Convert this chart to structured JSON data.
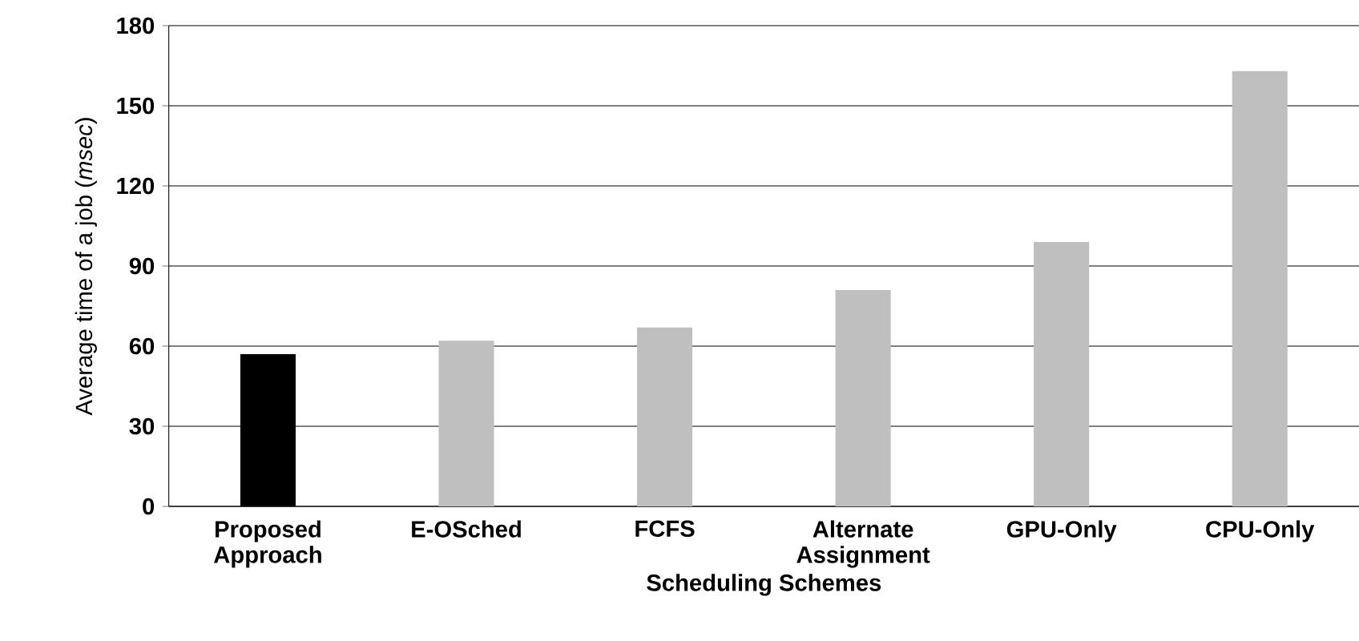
{
  "chart_data": {
    "type": "bar",
    "xlabel": "Scheduling Schemes",
    "ylabel": "Average time of a job (*msec*)",
    "categories": [
      "Proposed Approach",
      "E-OSched",
      "FCFS",
      "Alternate Assignment",
      "GPU-Only",
      "CPU-Only"
    ],
    "values": [
      57,
      62,
      67,
      81,
      99,
      163
    ],
    "colors": [
      "#000000",
      "#bfbfbf",
      "#bfbfbf",
      "#bfbfbf",
      "#bfbfbf",
      "#bfbfbf"
    ],
    "ylim": [
      0,
      180
    ],
    "yticks": [
      0,
      30,
      60,
      90,
      120,
      150,
      180
    ],
    "grid": "y"
  }
}
